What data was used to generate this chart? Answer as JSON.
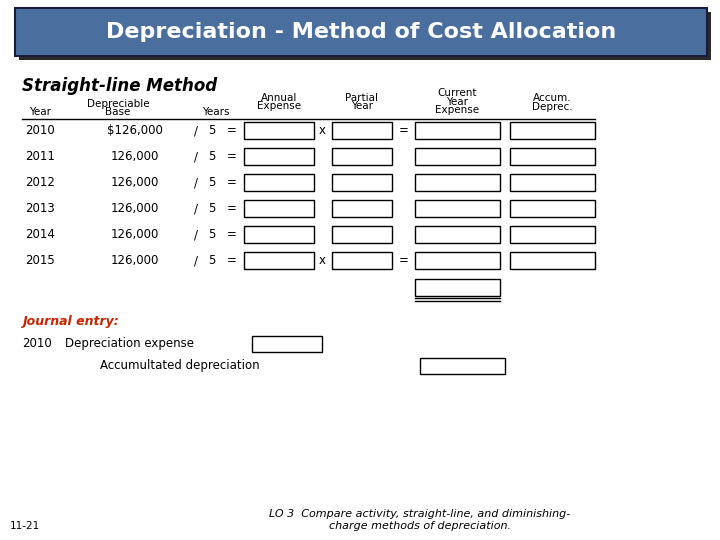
{
  "title": "Depreciation - Method of Cost Allocation",
  "subtitle": "Straight-line Method",
  "title_bg": "#4a6f9f",
  "title_shadow": "#2a2a2a",
  "title_fg": "white",
  "background": "white",
  "journal_label": "Journal entry:",
  "journal_label_color": "#cc2200",
  "journal_year": "2010",
  "journal_debit": "Depreciation expense",
  "journal_credit": "Accumultated depreciation",
  "footer_left": "11-21",
  "footer_right": "LO 3  Compare activity, straight-line, and diminishing-\ncharge methods of depreciation."
}
